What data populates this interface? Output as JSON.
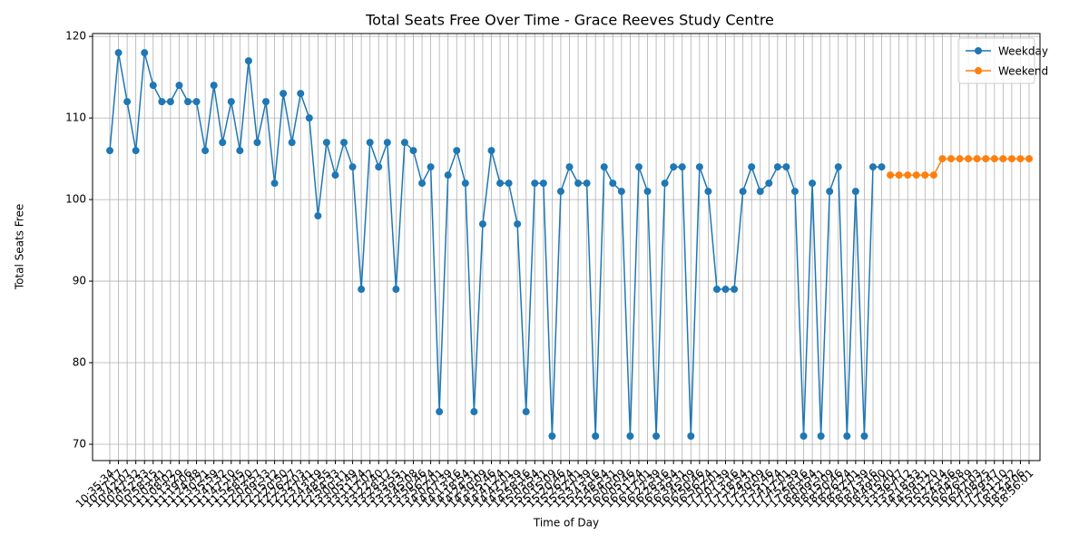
{
  "chart_data": {
    "type": "line",
    "title": "Total Seats Free Over Time - Grace Reeves Study Centre",
    "xlabel": "Time of Day",
    "ylabel": "Total Seats Free",
    "categories": [
      "10:35:34",
      "10:37:17",
      "10:42:07",
      "10:47:32",
      "10:52:33",
      "10:58:15",
      "11:03:41",
      "11:08:02",
      "11:13:29",
      "11:19:06",
      "11:24:48",
      "11:30:21",
      "11:35:59",
      "11:41:32",
      "11:47:10",
      "11:52:45",
      "11:58:20",
      "12:03:57",
      "12:09:33",
      "12:15:12",
      "12:20:50",
      "12:26:27",
      "12:32:03",
      "12:37:41",
      "12:43:19",
      "12:48:55",
      "12:54:33",
      "13:00:11",
      "13:05:49",
      "13:11:24",
      "13:17:02",
      "13:22:40",
      "13:28:17",
      "13:33:55",
      "13:39:31",
      "13:45:08",
      "13:50:46",
      "13:56:24",
      "14:02:01",
      "14:07:39",
      "14:13:16",
      "14:18:54",
      "14:24:31",
      "14:30:09",
      "14:35:46",
      "14:41:24",
      "14:47:01",
      "14:52:39",
      "14:58:16",
      "15:03:54",
      "15:09:31",
      "15:15:09",
      "15:20:46",
      "15:26:24",
      "15:32:01",
      "15:37:39",
      "15:43:16",
      "15:48:54",
      "15:54:31",
      "16:00:09",
      "16:05:46",
      "16:11:24",
      "16:17:01",
      "16:22:39",
      "16:28:16",
      "16:33:54",
      "16:39:31",
      "16:45:09",
      "16:50:46",
      "16:56:24",
      "17:02:01",
      "17:07:39",
      "17:13:16",
      "17:18:54",
      "17:24:31",
      "17:30:09",
      "17:35:46",
      "17:41:24",
      "17:47:01",
      "17:52:39",
      "17:58:16",
      "18:03:54",
      "18:09:31",
      "18:15:09",
      "18:20:46",
      "18:26:24",
      "18:32:01",
      "18:37:39",
      "18:43:16",
      "18:49:00",
      "13:15:40",
      "13:36:47",
      "13:57:12",
      "14:18:33",
      "14:39:51",
      "15:01:20",
      "15:22:14",
      "15:43:36",
      "16:04:58",
      "16:26:19",
      "16:47:03",
      "17:08:25",
      "17:29:47",
      "17:51:10",
      "18:12:32",
      "18:34:06",
      "18:56:01"
    ],
    "series": [
      {
        "name": "Weekday",
        "color": "#1f77b4",
        "values": [
          106,
          118,
          112,
          106,
          118,
          114,
          112,
          112,
          114,
          112,
          112,
          106,
          114,
          107,
          112,
          106,
          117,
          107,
          112,
          102,
          113,
          107,
          113,
          110,
          98,
          107,
          103,
          107,
          104,
          89,
          107,
          104,
          107,
          89,
          107,
          106,
          102,
          104,
          74,
          103,
          106,
          102,
          74,
          97,
          106,
          102,
          102,
          97,
          74,
          102,
          102,
          71,
          101,
          104,
          102,
          102,
          71,
          104,
          102,
          101,
          71,
          104,
          101,
          71,
          102,
          104,
          104,
          71,
          104,
          101,
          89,
          89,
          89,
          101,
          104,
          101,
          102,
          104,
          104,
          101,
          71,
          102,
          71,
          101,
          104,
          71,
          101,
          71,
          104,
          104,
          null,
          null,
          null,
          null,
          null,
          null,
          null,
          null,
          null,
          null,
          null,
          null,
          null,
          null,
          null,
          null,
          null
        ]
      },
      {
        "name": "Weekend",
        "color": "#ff7f0e",
        "values": [
          null,
          null,
          null,
          null,
          null,
          null,
          null,
          null,
          null,
          null,
          null,
          null,
          null,
          null,
          null,
          null,
          null,
          null,
          null,
          null,
          null,
          null,
          null,
          null,
          null,
          null,
          null,
          null,
          null,
          null,
          null,
          null,
          null,
          null,
          null,
          null,
          null,
          null,
          null,
          null,
          null,
          null,
          null,
          null,
          null,
          null,
          null,
          null,
          null,
          null,
          null,
          null,
          null,
          null,
          null,
          null,
          null,
          null,
          null,
          null,
          null,
          null,
          null,
          null,
          null,
          null,
          null,
          null,
          null,
          null,
          null,
          null,
          null,
          null,
          null,
          null,
          null,
          null,
          null,
          null,
          null,
          null,
          null,
          null,
          null,
          null,
          null,
          null,
          null,
          null,
          103,
          103,
          103,
          103,
          103,
          103,
          105,
          105,
          105,
          105,
          105,
          105,
          105,
          105,
          105,
          105,
          105
        ]
      }
    ],
    "ylim": [
      68,
      120.35
    ],
    "yticks": [
      70,
      80,
      90,
      100,
      110,
      120
    ],
    "grid": true,
    "legend": "upper right"
  }
}
